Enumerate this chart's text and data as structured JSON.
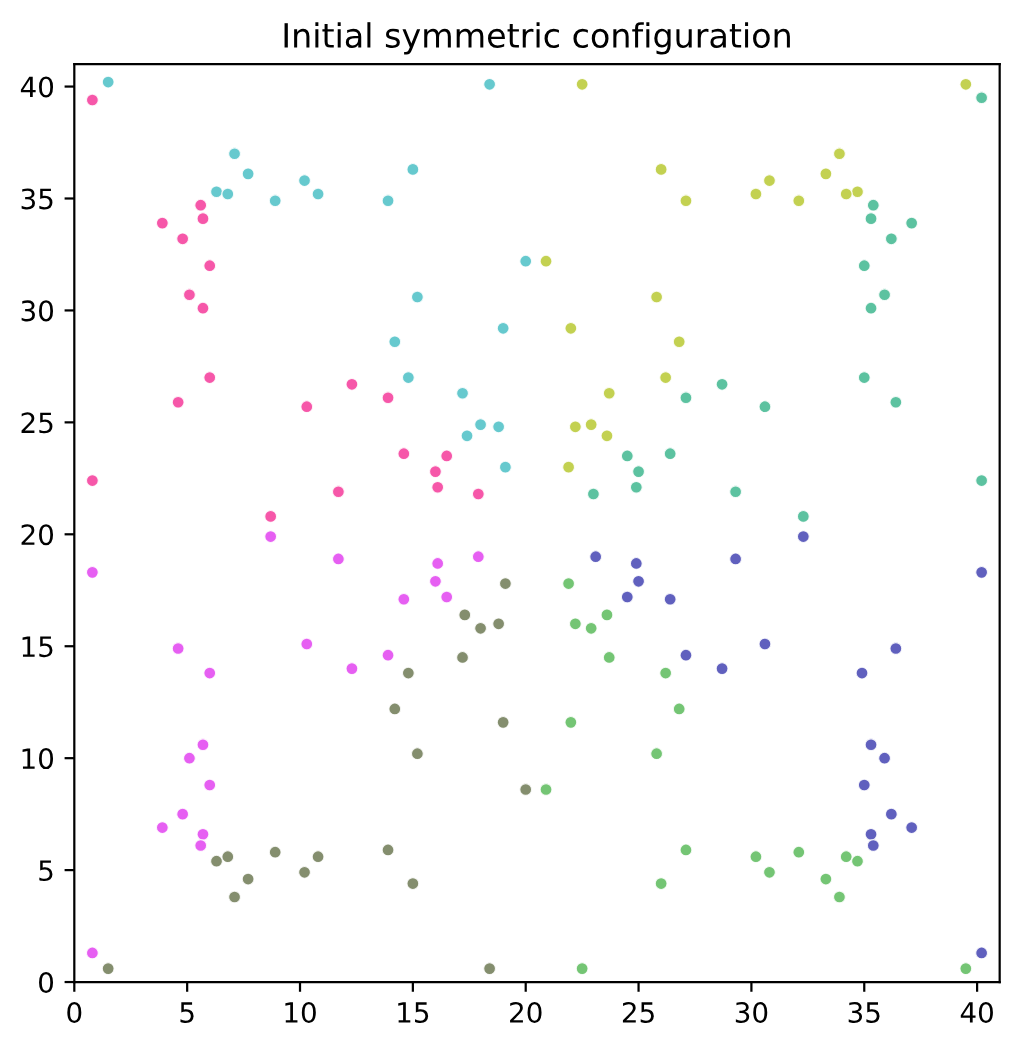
{
  "chart_data": {
    "type": "scatter",
    "title": "Initial symmetric configuration",
    "marker": "circle",
    "grid": false,
    "legend": false,
    "xlim": [
      0,
      41
    ],
    "ylim": [
      0,
      41
    ],
    "xticks": [
      0,
      5,
      10,
      15,
      20,
      25,
      30,
      35,
      40
    ],
    "yticks": [
      0,
      5,
      10,
      15,
      20,
      25,
      30,
      35,
      40
    ],
    "series": [
      {
        "color": "#f5399a",
        "x": [
          0.8,
          3.9,
          4.8,
          5.6,
          5.7,
          6.0,
          5.1,
          5.7,
          6.0,
          4.6,
          10.3,
          12.3,
          13.9,
          0.8,
          14.6,
          16.5,
          16.0,
          16.1,
          17.9,
          11.7,
          8.7
        ],
        "values": [
          39.4,
          33.9,
          33.2,
          34.7,
          34.1,
          32.0,
          30.7,
          30.1,
          27.0,
          25.9,
          25.7,
          26.7,
          26.1,
          22.4,
          23.6,
          23.5,
          22.8,
          22.1,
          21.8,
          21.9,
          20.8
        ]
      },
      {
        "color": "#4bbfc6",
        "x": [
          1.5,
          7.1,
          7.7,
          6.3,
          6.8,
          8.9,
          10.2,
          10.8,
          13.9,
          15.0,
          18.4,
          20.0,
          15.2,
          19.0,
          14.2,
          14.8,
          17.2,
          18.0,
          18.8,
          17.4,
          19.1
        ],
        "values": [
          40.2,
          37.0,
          36.1,
          35.3,
          35.2,
          34.9,
          35.8,
          35.2,
          34.9,
          36.3,
          40.1,
          32.2,
          30.6,
          29.2,
          28.6,
          27.0,
          26.3,
          24.9,
          24.8,
          24.4,
          23.0
        ]
      },
      {
        "color": "#b8c933",
        "x": [
          22.5,
          39.5,
          33.9,
          33.3,
          34.7,
          34.2,
          32.1,
          30.8,
          30.2,
          27.1,
          26.0,
          20.9,
          25.8,
          22.0,
          26.8,
          26.2,
          23.7,
          22.9,
          22.2,
          23.6,
          21.9
        ],
        "values": [
          40.1,
          40.1,
          37.0,
          36.1,
          35.3,
          35.2,
          34.9,
          35.8,
          35.2,
          34.9,
          36.3,
          32.2,
          30.6,
          29.2,
          28.6,
          27.0,
          26.3,
          24.9,
          24.8,
          24.4,
          23.0
        ]
      },
      {
        "color": "#3fb78f",
        "x": [
          40.2,
          35.4,
          35.3,
          37.1,
          36.2,
          35.0,
          35.9,
          35.3,
          35.0,
          36.4,
          28.7,
          27.1,
          30.6,
          40.2,
          26.4,
          24.5,
          25.0,
          24.9,
          23.0,
          29.3,
          32.3
        ],
        "values": [
          39.5,
          34.7,
          34.1,
          33.9,
          33.2,
          32.0,
          30.7,
          30.1,
          27.0,
          25.9,
          26.7,
          26.1,
          25.7,
          22.4,
          23.6,
          23.5,
          22.8,
          22.1,
          21.8,
          21.9,
          20.8
        ]
      },
      {
        "color": "#e243f0",
        "x": [
          0.8,
          8.7,
          11.7,
          16.1,
          16.0,
          17.9,
          14.6,
          16.5,
          4.6,
          6.0,
          10.3,
          12.3,
          13.9,
          5.7,
          5.1,
          6.0,
          4.8,
          3.9,
          5.7,
          5.6,
          0.8
        ],
        "values": [
          18.3,
          19.9,
          18.9,
          18.7,
          17.9,
          19.0,
          17.1,
          17.2,
          14.9,
          13.8,
          15.1,
          14.0,
          14.6,
          10.6,
          10.0,
          8.8,
          7.5,
          6.9,
          6.6,
          6.1,
          1.3
        ]
      },
      {
        "color": "#6f7a55",
        "x": [
          1.5,
          18.4,
          19.1,
          17.3,
          18.0,
          18.8,
          17.2,
          14.8,
          14.2,
          19.0,
          15.2,
          20.0,
          6.3,
          6.8,
          8.9,
          7.7,
          7.1,
          10.2,
          10.8,
          13.9,
          15.0
        ],
        "values": [
          0.6,
          0.6,
          17.8,
          16.4,
          15.8,
          16.0,
          14.5,
          13.8,
          12.2,
          11.6,
          10.2,
          8.6,
          5.4,
          5.6,
          5.8,
          4.6,
          3.8,
          4.9,
          5.6,
          5.9,
          4.4
        ]
      },
      {
        "color": "#4444b3",
        "x": [
          32.3,
          23.1,
          24.9,
          25.0,
          24.5,
          26.4,
          29.3,
          40.2,
          30.6,
          27.1,
          28.7,
          34.9,
          36.4,
          35.3,
          35.9,
          35.0,
          36.2,
          37.1,
          35.3,
          35.4,
          40.2
        ],
        "values": [
          19.9,
          19.0,
          18.7,
          17.9,
          17.2,
          17.1,
          18.9,
          18.3,
          15.1,
          14.6,
          14.0,
          13.8,
          14.9,
          10.6,
          10.0,
          8.8,
          7.5,
          6.9,
          6.6,
          6.1,
          1.3
        ]
      },
      {
        "color": "#5cbb5c",
        "x": [
          22.5,
          39.5,
          21.9,
          22.2,
          22.9,
          23.6,
          23.7,
          26.2,
          26.8,
          22.0,
          25.8,
          20.9,
          27.1,
          26.0,
          30.2,
          30.8,
          32.1,
          33.3,
          33.9,
          34.2,
          34.7
        ],
        "values": [
          0.6,
          0.6,
          17.8,
          16.0,
          15.8,
          16.4,
          14.5,
          13.8,
          12.2,
          11.6,
          10.2,
          8.6,
          5.9,
          4.4,
          5.6,
          4.9,
          5.8,
          4.6,
          3.8,
          5.6,
          5.4
        ]
      }
    ]
  }
}
